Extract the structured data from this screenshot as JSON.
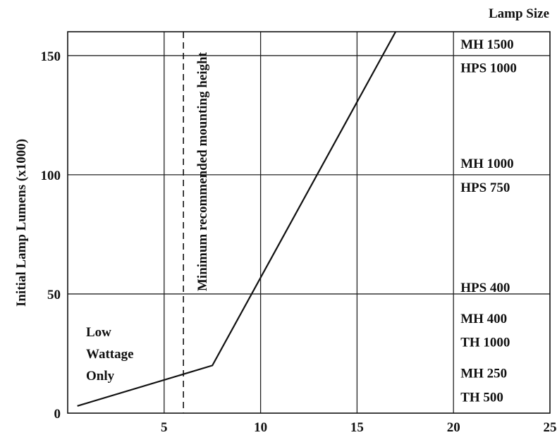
{
  "chart_data": {
    "type": "line",
    "title": "",
    "xlabel": "",
    "ylabel": "Initial Lamp Lumens (x1000)",
    "xlim": [
      0,
      25
    ],
    "ylim": [
      0,
      160
    ],
    "x_ticks": [
      5,
      10,
      15,
      20,
      25
    ],
    "y_ticks": [
      0,
      50,
      100,
      150
    ],
    "grid": true,
    "series": [
      {
        "x": [
          0.5,
          7.5,
          17
        ],
        "y": [
          3,
          20,
          160
        ]
      }
    ],
    "min_mounting": {
      "x": 6,
      "label": "Minimum recommended mounting height"
    },
    "low_wattage": {
      "lines": [
        "Low",
        "Wattage",
        "Only"
      ]
    },
    "lamp_size": {
      "header": "Lamp Size",
      "labels": [
        {
          "text": "MH 1500",
          "y": 155
        },
        {
          "text": "HPS 1000",
          "y": 145
        },
        {
          "text": "MH 1000",
          "y": 105
        },
        {
          "text": "HPS 750",
          "y": 95
        },
        {
          "text": "HPS 400",
          "y": 53
        },
        {
          "text": "MH 400",
          "y": 40
        },
        {
          "text": "TH 1000",
          "y": 30
        },
        {
          "text": "MH 250",
          "y": 17
        },
        {
          "text": "TH 500",
          "y": 7
        }
      ]
    }
  }
}
